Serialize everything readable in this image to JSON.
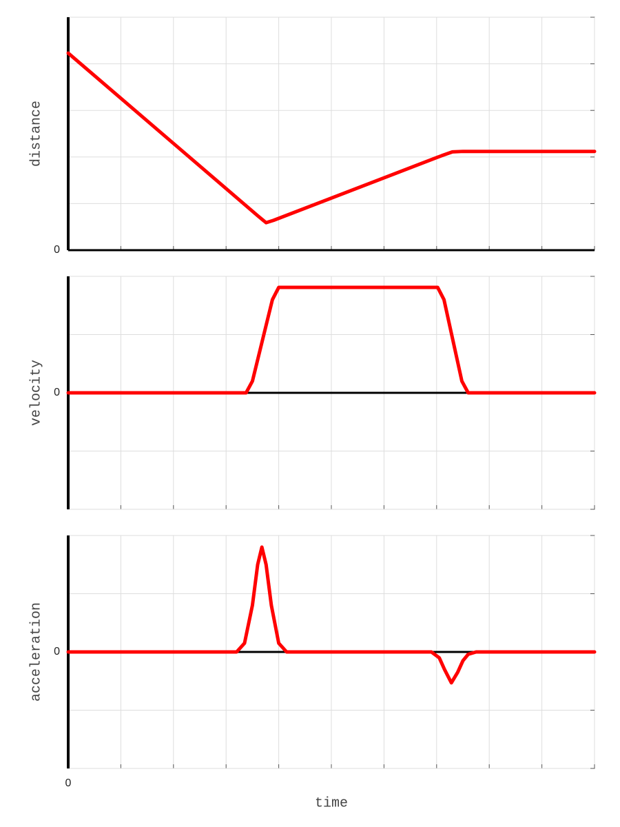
{
  "chart_data": [
    {
      "type": "line",
      "ylabel": "distance",
      "color": "#ff0000",
      "grid": true,
      "x": [
        0,
        3.6,
        3.76,
        3.9,
        7.1,
        7.3,
        7.5,
        10
      ],
      "values": [
        4.23,
        0.74,
        0.59,
        0.64,
        2.03,
        2.11,
        2.12,
        2.12
      ],
      "xlim": [
        0,
        10
      ],
      "ylim": [
        0,
        5
      ],
      "xticks": [
        {
          "value": 0,
          "label": null
        },
        {
          "value": 1,
          "label": null
        },
        {
          "value": 2,
          "label": null
        },
        {
          "value": 3,
          "label": null
        },
        {
          "value": 4,
          "label": null
        },
        {
          "value": 5,
          "label": null
        },
        {
          "value": 6,
          "label": null
        },
        {
          "value": 7,
          "label": null
        },
        {
          "value": 8,
          "label": null
        },
        {
          "value": 9,
          "label": null
        },
        {
          "value": 10,
          "label": null
        }
      ],
      "yticks": [
        {
          "value": 0,
          "label": "0"
        },
        {
          "value": 1,
          "label": null
        },
        {
          "value": 2,
          "label": null
        },
        {
          "value": 3,
          "label": null
        },
        {
          "value": 4,
          "label": null
        },
        {
          "value": 5,
          "label": null
        }
      ]
    },
    {
      "type": "line",
      "ylabel": "velocity",
      "color": "#ff0000",
      "grid": true,
      "x": [
        0,
        3.38,
        3.5,
        3.69,
        3.88,
        4.0,
        7.02,
        7.14,
        7.31,
        7.48,
        7.6,
        10
      ],
      "values": [
        0,
        0,
        0.2,
        0.9,
        1.6,
        1.81,
        1.81,
        1.6,
        0.9,
        0.2,
        0,
        0
      ],
      "xlim": [
        0,
        10
      ],
      "ylim": [
        -2,
        2
      ],
      "xticks": [
        {
          "value": 0,
          "label": null
        },
        {
          "value": 1,
          "label": null
        },
        {
          "value": 2,
          "label": null
        },
        {
          "value": 3,
          "label": null
        },
        {
          "value": 4,
          "label": null
        },
        {
          "value": 5,
          "label": null
        },
        {
          "value": 6,
          "label": null
        },
        {
          "value": 7,
          "label": null
        },
        {
          "value": 8,
          "label": null
        },
        {
          "value": 9,
          "label": null
        },
        {
          "value": 10,
          "label": null
        }
      ],
      "yticks": [
        {
          "value": -2,
          "label": null
        },
        {
          "value": -1,
          "label": null
        },
        {
          "value": 0,
          "label": "0"
        },
        {
          "value": 1,
          "label": null
        },
        {
          "value": 2,
          "label": null
        }
      ]
    },
    {
      "type": "line",
      "ylabel": "acceleration",
      "xlabel": "time",
      "color": "#ff0000",
      "grid": true,
      "x": [
        0,
        3.2,
        3.35,
        3.5,
        3.6,
        3.68,
        3.76,
        3.86,
        4.0,
        4.15,
        6.9,
        7.05,
        7.15,
        7.28,
        7.4,
        7.5,
        7.6,
        7.75,
        10
      ],
      "values": [
        0,
        0,
        0.15,
        0.8,
        1.5,
        1.8,
        1.5,
        0.8,
        0.15,
        0,
        0,
        -0.1,
        -0.3,
        -0.53,
        -0.35,
        -0.15,
        -0.04,
        0,
        0
      ],
      "xlim": [
        0,
        10
      ],
      "ylim": [
        -2,
        2
      ],
      "xticks": [
        {
          "value": 0,
          "label": "0"
        },
        {
          "value": 1,
          "label": null
        },
        {
          "value": 2,
          "label": null
        },
        {
          "value": 3,
          "label": null
        },
        {
          "value": 4,
          "label": null
        },
        {
          "value": 5,
          "label": null
        },
        {
          "value": 6,
          "label": null
        },
        {
          "value": 7,
          "label": null
        },
        {
          "value": 8,
          "label": null
        },
        {
          "value": 9,
          "label": null
        },
        {
          "value": 10,
          "label": null
        }
      ],
      "yticks": [
        {
          "value": -2,
          "label": null
        },
        {
          "value": -1,
          "label": null
        },
        {
          "value": 0,
          "label": "0"
        },
        {
          "value": 1,
          "label": null
        },
        {
          "value": 2,
          "label": null
        }
      ]
    }
  ]
}
